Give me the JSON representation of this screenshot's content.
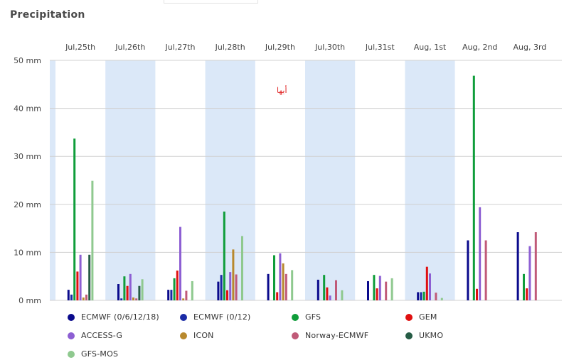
{
  "title": "Precipitation",
  "annotation": "أبها",
  "chart_data": {
    "type": "bar",
    "title": "Precipitation",
    "categories": [
      "Jul,25th",
      "Jul,26th",
      "Jul,27th",
      "Jul,28th",
      "Jul,29th",
      "Jul,30th",
      "Jul,31st",
      "Aug, 1st",
      "Aug, 2nd",
      "Aug, 3rd"
    ],
    "ylim": [
      0,
      50
    ],
    "yticks": [
      0,
      10,
      20,
      30,
      40,
      50
    ],
    "ytick_labels": [
      "0 mm",
      "10 mm",
      "20 mm",
      "30 mm",
      "40 mm",
      "50 mm"
    ],
    "grid": true,
    "legend_position": "bottom",
    "shaded_columns": [
      1,
      3,
      5,
      7
    ],
    "series": [
      {
        "name": "ECMWF (0/6/12/18)",
        "color": "#0a0a8c",
        "values": [
          2.2,
          3.4,
          2.2,
          3.9,
          5.5,
          4.3,
          4.0,
          1.7,
          12.5,
          14.2
        ]
      },
      {
        "name": "ECMWF (0/12)",
        "color": "#1a2ba6",
        "values": [
          1.2,
          0.4,
          2.2,
          5.3,
          0,
          0,
          0,
          1.7,
          0,
          0
        ]
      },
      {
        "name": "GFS",
        "color": "#0f9d3a",
        "values": [
          33.7,
          5.0,
          4.6,
          18.5,
          9.4,
          5.3,
          5.3,
          1.8,
          46.8,
          5.5
        ]
      },
      {
        "name": "GEM",
        "color": "#e01010",
        "values": [
          6.0,
          3.0,
          6.2,
          2.1,
          1.7,
          2.7,
          2.5,
          7.0,
          2.4,
          2.5
        ]
      },
      {
        "name": "ACCESS-G",
        "color": "#8d5fd3",
        "values": [
          9.5,
          5.5,
          15.3,
          5.9,
          9.8,
          1.0,
          5.1,
          5.6,
          19.4,
          11.3
        ]
      },
      {
        "name": "ICON",
        "color": "#b8892e",
        "values": [
          0.6,
          0.6,
          0.4,
          10.6,
          7.7,
          0,
          0,
          0,
          0,
          0
        ]
      },
      {
        "name": "Norway-ECMWF",
        "color": "#c05a78",
        "values": [
          1.2,
          0.4,
          2.0,
          5.4,
          5.5,
          4.2,
          3.9,
          1.6,
          12.5,
          14.2
        ]
      },
      {
        "name": "UKMO",
        "color": "#265c45",
        "values": [
          9.5,
          3.0,
          0,
          0,
          0,
          0,
          0,
          0,
          0,
          0
        ]
      },
      {
        "name": "GFS-MOS",
        "color": "#8fc98f",
        "values": [
          24.9,
          4.4,
          4.0,
          13.4,
          6.3,
          2.1,
          4.6,
          0.5,
          0,
          0
        ]
      }
    ]
  }
}
